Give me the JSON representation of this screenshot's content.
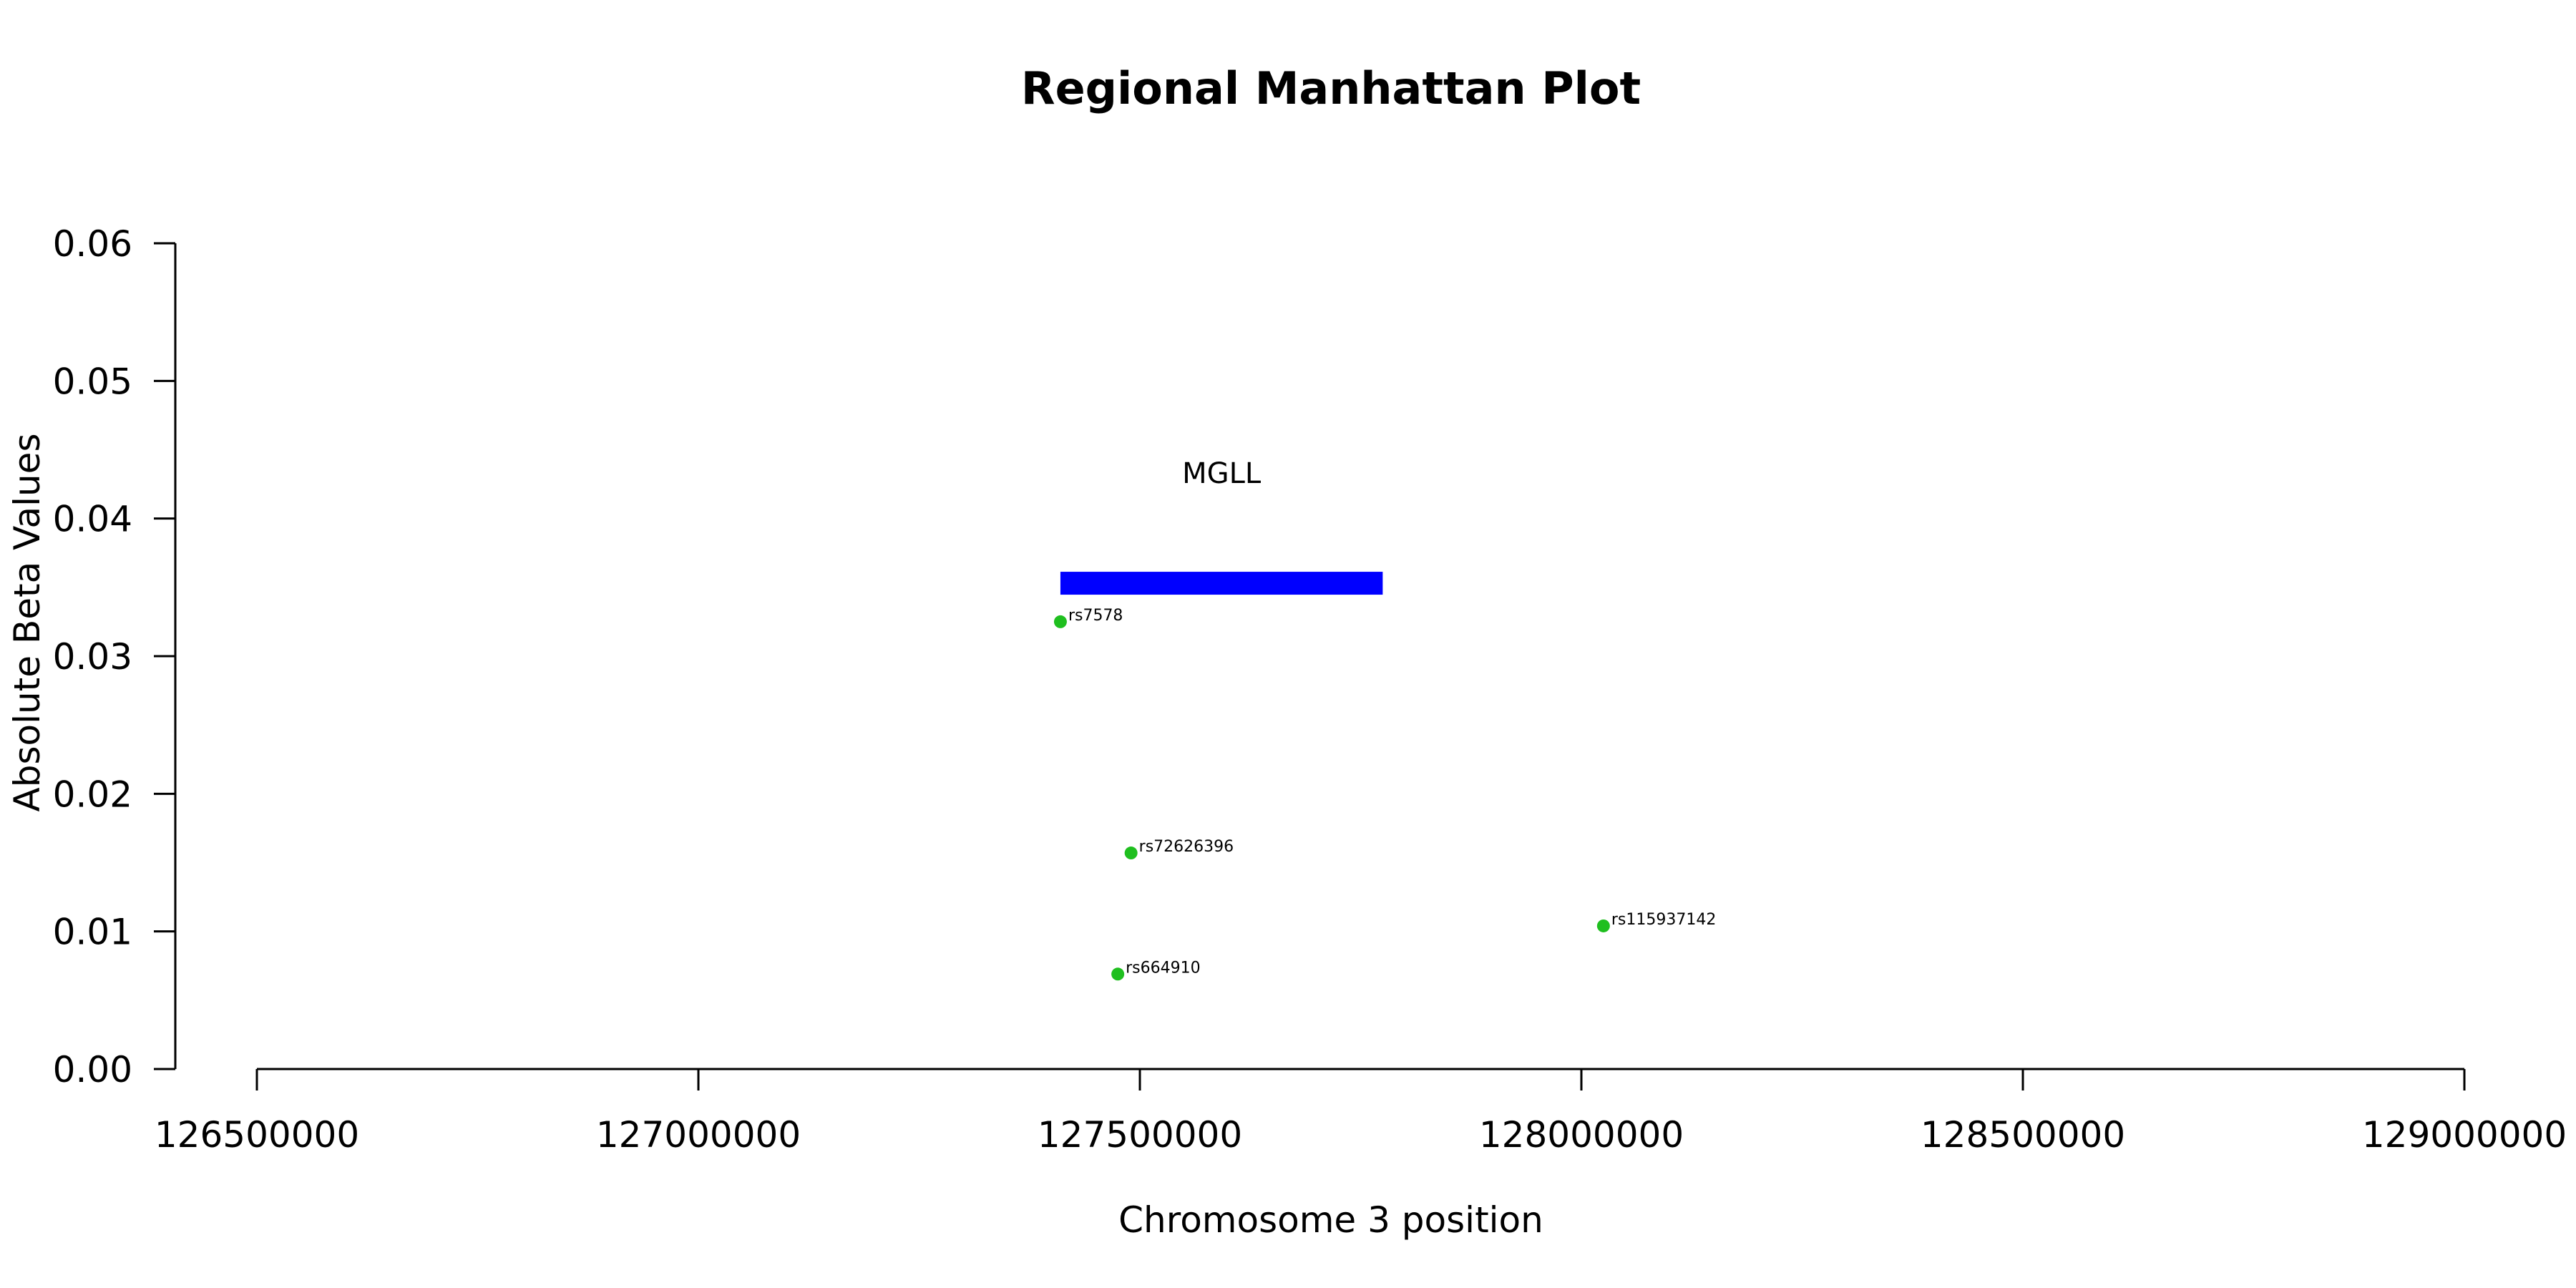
{
  "chart_data": {
    "type": "scatter",
    "title": "Regional Manhattan Plot",
    "xlabel": "Chromosome 3 position",
    "ylabel": "Absolute Beta Values",
    "xlim": [
      126500000,
      129000000
    ],
    "ylim": [
      0,
      0.06
    ],
    "x_ticks": [
      126500000,
      127000000,
      127500000,
      128000000,
      128500000,
      129000000
    ],
    "x_tick_labels": [
      "126500000",
      "127000000",
      "127500000",
      "128000000",
      "128500000",
      "129000000"
    ],
    "y_ticks": [
      0,
      0.01,
      0.02,
      0.03,
      0.04,
      0.05,
      0.06
    ],
    "y_tick_labels": [
      "0.00",
      "0.01",
      "0.02",
      "0.03",
      "0.04",
      "0.05",
      "0.06"
    ],
    "grid": false,
    "point_color": "#1fbf1f",
    "points": [
      {
        "label": "rs7578",
        "x": 127410000,
        "y": 0.0325
      },
      {
        "label": "rs72626396",
        "x": 127490000,
        "y": 0.0157
      },
      {
        "label": "rs664910",
        "x": 127475000,
        "y": 0.0069
      },
      {
        "label": "rs115937142",
        "x": 128025000,
        "y": 0.0104
      }
    ],
    "genes": [
      {
        "name": "MGLL",
        "start": 127410000,
        "end": 127775000,
        "y": 0.0353,
        "color": "#0000ff"
      }
    ]
  }
}
